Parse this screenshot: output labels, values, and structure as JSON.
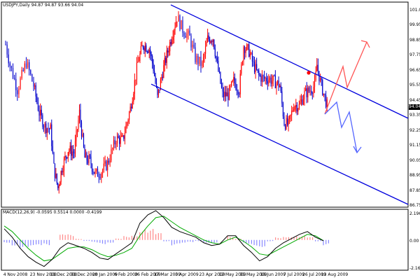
{
  "title": "USDJPY,Daily  94.87 94.87 93.66 94.04",
  "macd_label": "MACD(12,26,9) -0.0595 0.5514 0.0000 -0.4199",
  "current_price_label": "94.04",
  "colors": {
    "up_candle": "#ff0000",
    "down_candle": "#0000cc",
    "channel": "#0000dd",
    "red_arrow": "#ff5555",
    "blue_arrow": "#5566ff",
    "macd_line": "#000000",
    "signal_line": "#00aa00",
    "hist_positive": "#ff8888",
    "hist_negative": "#8888ff",
    "marker": "#ff0000"
  },
  "price_axis": {
    "ticks": [
      "101.05",
      "99.95",
      "98.85",
      "97.75",
      "96.65",
      "95.55",
      "94.45",
      "93.35",
      "92.25",
      "91.15",
      "90.05",
      "88.95",
      "87.85",
      "86.75"
    ]
  },
  "macd_axis": {
    "ticks": [
      "2.1962",
      "0.00",
      "-2.1687"
    ]
  },
  "date_axis": {
    "ticks": [
      "4 Nov 2008",
      "23 Nov 2008",
      "11 Dec 2008",
      "31 Dec 2008",
      "20 Jan 2009",
      "6 Feb 2009",
      "26 Feb 2009",
      "17 Mar 2009",
      "5 Apr 2009",
      "23 Apr 2009",
      "12 May 2009",
      "31 May 2009",
      "18 Jun 2009",
      "7 Jul 2009",
      "26 Jul 2009",
      "13 Aug 2009"
    ]
  },
  "chart_data": {
    "type": "candlestick",
    "title": "USDJPY,Daily  94.87 94.87 93.66 94.04",
    "ylim": [
      86.75,
      101.6
    ],
    "price_path": [
      {
        "x": "4 Nov 2008",
        "close": 98.5
      },
      {
        "x": "7 Nov 2008",
        "close": 97.0
      },
      {
        "x": "12 Nov 2008",
        "close": 95.2
      },
      {
        "x": "18 Nov 2008",
        "close": 97.2
      },
      {
        "x": "23 Nov 2008",
        "close": 95.5
      },
      {
        "x": "28 Nov 2008",
        "close": 93.5
      },
      {
        "x": "3 Dec 2008",
        "close": 92.5
      },
      {
        "x": "8 Dec 2008",
        "close": 92.3
      },
      {
        "x": "11 Dec 2008",
        "close": 89.5
      },
      {
        "x": "15 Dec 2008",
        "close": 88.0
      },
      {
        "x": "19 Dec 2008",
        "close": 89.5
      },
      {
        "x": "25 Dec 2008",
        "close": 90.8
      },
      {
        "x": "31 Dec 2008",
        "close": 90.6
      },
      {
        "x": "5 Jan 2009",
        "close": 93.5
      },
      {
        "x": "10 Jan 2009",
        "close": 90.2
      },
      {
        "x": "15 Jan 2009",
        "close": 90.0
      },
      {
        "x": "20 Jan 2009",
        "close": 89.0
      },
      {
        "x": "25 Jan 2009",
        "close": 89.2
      },
      {
        "x": "30 Jan 2009",
        "close": 89.8
      },
      {
        "x": "6 Feb 2009",
        "close": 91.6
      },
      {
        "x": "12 Feb 2009",
        "close": 91.5
      },
      {
        "x": "19 Feb 2009",
        "close": 93.8
      },
      {
        "x": "26 Feb 2009",
        "close": 97.2
      },
      {
        "x": "3 Mar 2009",
        "close": 98.5
      },
      {
        "x": "9 Mar 2009",
        "close": 98.2
      },
      {
        "x": "13 Mar 2009",
        "close": 96.8
      },
      {
        "x": "17 Mar 2009",
        "close": 94.6
      },
      {
        "x": "22 Mar 2009",
        "close": 96.5
      },
      {
        "x": "27 Mar 2009",
        "close": 98.0
      },
      {
        "x": "1 Apr 2009",
        "close": 99.5
      },
      {
        "x": "5 Apr 2009",
        "close": 100.5
      },
      {
        "x": "9 Apr 2009",
        "close": 99.6
      },
      {
        "x": "14 Apr 2009",
        "close": 99.0
      },
      {
        "x": "18 Apr 2009",
        "close": 97.5
      },
      {
        "x": "23 Apr 2009",
        "close": 97.0
      },
      {
        "x": "28 Apr 2009",
        "close": 98.9
      },
      {
        "x": "3 May 2009",
        "close": 99.0
      },
      {
        "x": "7 May 2009",
        "close": 97.0
      },
      {
        "x": "12 May 2009",
        "close": 94.8
      },
      {
        "x": "17 May 2009",
        "close": 94.8
      },
      {
        "x": "22 May 2009",
        "close": 95.8
      },
      {
        "x": "27 May 2009",
        "close": 95.2
      },
      {
        "x": "31 May 2009",
        "close": 98.4
      },
      {
        "x": "5 Jun 2009",
        "close": 98.0
      },
      {
        "x": "9 Jun 2009",
        "close": 97.0
      },
      {
        "x": "14 Jun 2009",
        "close": 96.2
      },
      {
        "x": "18 Jun 2009",
        "close": 96.0
      },
      {
        "x": "23 Jun 2009",
        "close": 96.0
      },
      {
        "x": "28 Jun 2009",
        "close": 95.8
      },
      {
        "x": "3 Jul 2009",
        "close": 95.5
      },
      {
        "x": "7 Jul 2009",
        "close": 92.8
      },
      {
        "x": "11 Jul 2009",
        "close": 92.6
      },
      {
        "x": "16 Jul 2009",
        "close": 94.1
      },
      {
        "x": "21 Jul 2009",
        "close": 94.0
      },
      {
        "x": "26 Jul 2009",
        "close": 94.9
      },
      {
        "x": "30 Jul 2009",
        "close": 95.1
      },
      {
        "x": "4 Aug 2009",
        "close": 95.5
      },
      {
        "x": "6 Aug 2009",
        "close": 97.0
      },
      {
        "x": "9 Aug 2009",
        "close": 95.8
      },
      {
        "x": "13 Aug 2009",
        "close": 94.6
      },
      {
        "x": "15 Aug 2009",
        "close": 94.04
      }
    ],
    "channel_upper": [
      {
        "x": "5 Apr 2009",
        "y": 101.4
      },
      {
        "x": "end",
        "y": 93.1
      }
    ],
    "channel_lower": [
      {
        "x": "17 Mar 2009",
        "y": 95.6
      },
      {
        "x": "end",
        "y": 86.8
      }
    ],
    "annotations": [
      "red arrow projection upward",
      "blue arrow projection downward",
      "red dot marker"
    ]
  },
  "macd_data": {
    "ylim": [
      -2.1687,
      2.1962
    ],
    "macd": [
      0.8,
      0.2,
      -0.6,
      -1.2,
      -1.6,
      -1.9,
      -1.4,
      -0.6,
      -0.2,
      -0.4,
      -0.6,
      -0.9,
      -1.3,
      -1.4,
      -1.0,
      -0.6,
      -0.2,
      1.2,
      1.8,
      2.1,
      1.6,
      0.9,
      0.6,
      0.4,
      0.2,
      -0.2,
      -0.4,
      -0.3,
      0.3,
      0.3,
      -0.4,
      -0.9,
      -1.5,
      -1.2,
      -0.6,
      -0.2,
      0.1,
      0.4,
      0.6,
      0.2,
      -0.06
    ],
    "signal": [
      1.0,
      0.6,
      0.0,
      -0.6,
      -1.1,
      -1.5,
      -1.4,
      -1.0,
      -0.6,
      -0.5,
      -0.5,
      -0.7,
      -1.0,
      -1.2,
      -1.1,
      -0.9,
      -0.6,
      0.3,
      1.0,
      1.6,
      1.7,
      1.3,
      0.9,
      0.6,
      0.3,
      0.0,
      -0.2,
      -0.3,
      0.0,
      0.2,
      -0.1,
      -0.5,
      -1.0,
      -1.1,
      -0.8,
      -0.5,
      -0.2,
      0.1,
      0.4,
      0.3,
      -0.05
    ],
    "histogram": [
      -0.2,
      -0.4,
      -0.6,
      -0.6,
      -0.5,
      -0.4,
      0.0,
      0.4,
      0.4,
      0.1,
      -0.1,
      -0.2,
      -0.3,
      -0.2,
      0.1,
      0.3,
      0.4,
      0.9,
      0.8,
      0.5,
      -0.1,
      -0.4,
      -0.3,
      -0.2,
      -0.1,
      -0.2,
      -0.2,
      0.0,
      0.3,
      0.1,
      -0.3,
      -0.4,
      -0.5,
      -0.1,
      0.2,
      0.3,
      0.3,
      0.3,
      0.2,
      -0.1,
      -0.4
    ]
  }
}
